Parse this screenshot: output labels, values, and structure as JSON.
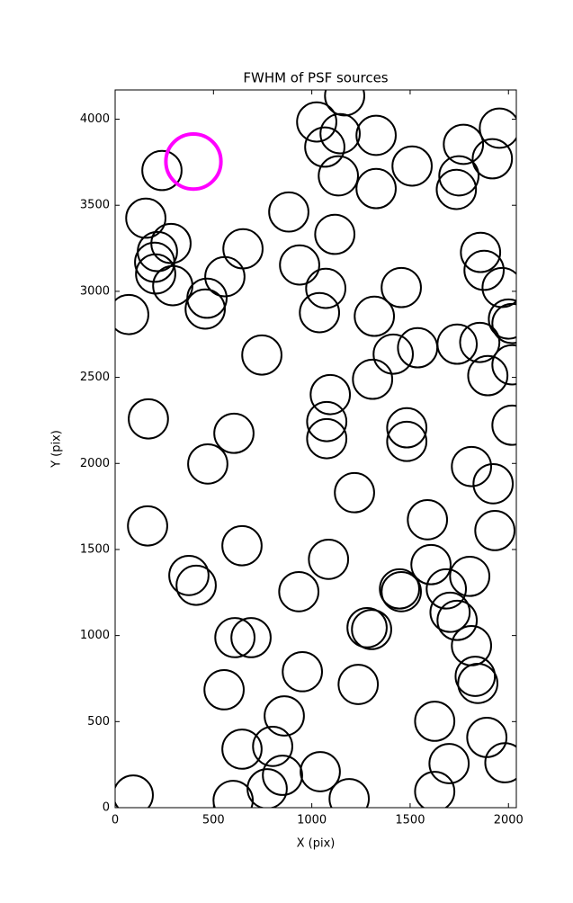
{
  "chart_data": {
    "type": "scatter",
    "title": "FWHM of PSF sources",
    "x_label": "X (pix)",
    "y_label": "Y (pix)",
    "xlim": [
      0,
      2040
    ],
    "ylim": [
      0,
      4170
    ],
    "xticks": [
      0,
      500,
      1000,
      1500,
      2000
    ],
    "yticks": [
      0,
      500,
      1000,
      1500,
      2000,
      2500,
      3000,
      3500,
      4000
    ],
    "grid": false,
    "series": [
      {
        "color": "#000000",
        "size": 100,
        "x": [
          238,
          156,
          215,
          284,
          201,
          206,
          293,
          467,
          458,
          558,
          650,
          69,
          746,
          169,
          604,
          471,
          165,
          645,
          375,
          412,
          609,
          691,
          554,
          952,
          934,
          1085,
          645,
          801,
          860,
          851,
          773,
          600,
          92,
          1043,
          1190,
          1236,
          1281,
          1304,
          1455,
          1446,
          1588,
          1606,
          1684,
          1703,
          1739,
          1803,
          1812,
          1831,
          1844,
          1625,
          1698,
          1625,
          1890,
          1982,
          1217,
          1483,
          1483,
          1812,
          1922,
          1931,
          1094,
          1076,
          1076,
          1309,
          1414,
          1538,
          1318,
          1455,
          1739,
          1854,
          1895,
          2018,
          2018,
          2000,
          2018,
          1968,
          1876,
          1858,
          1918,
          1954,
          1771,
          1748,
          1735,
          1510,
          1327,
          1327,
          1135,
          1144,
          1167,
          1025,
          1066,
          1117,
          1071,
          1039,
          938,
          883
        ],
        "y": [
          3702,
          3425,
          3231,
          3278,
          3169,
          3101,
          3033,
          2960,
          2897,
          3085,
          3247,
          2865,
          2630,
          2259,
          2175,
          1997,
          1637,
          1522,
          1349,
          1292,
          988,
          988,
          685,
          790,
          1255,
          1443,
          340,
          356,
          533,
          188,
          110,
          42,
          73,
          209,
          52,
          716,
          1046,
          1035,
          1255,
          1271,
          1673,
          1412,
          1271,
          1135,
          1088,
          1344,
          941,
          763,
          722,
          502,
          256,
          94,
          408,
          261,
          1830,
          2207,
          2128,
          1982,
          1882,
          1610,
          2400,
          2243,
          2144,
          2489,
          2635,
          2672,
          2855,
          3022,
          2693,
          2703,
          2510,
          2222,
          2573,
          2839,
          2813,
          3022,
          3122,
          3226,
          3770,
          3948,
          3854,
          3671,
          3592,
          3728,
          3597,
          3906,
          3671,
          3916,
          4136,
          3984,
          3838,
          3331,
          3017,
          2876,
          3153,
          3461
        ]
      },
      {
        "color": "#ff00ff",
        "size": 140,
        "x": [
          398
        ],
        "y": [
          3754
        ]
      }
    ]
  }
}
